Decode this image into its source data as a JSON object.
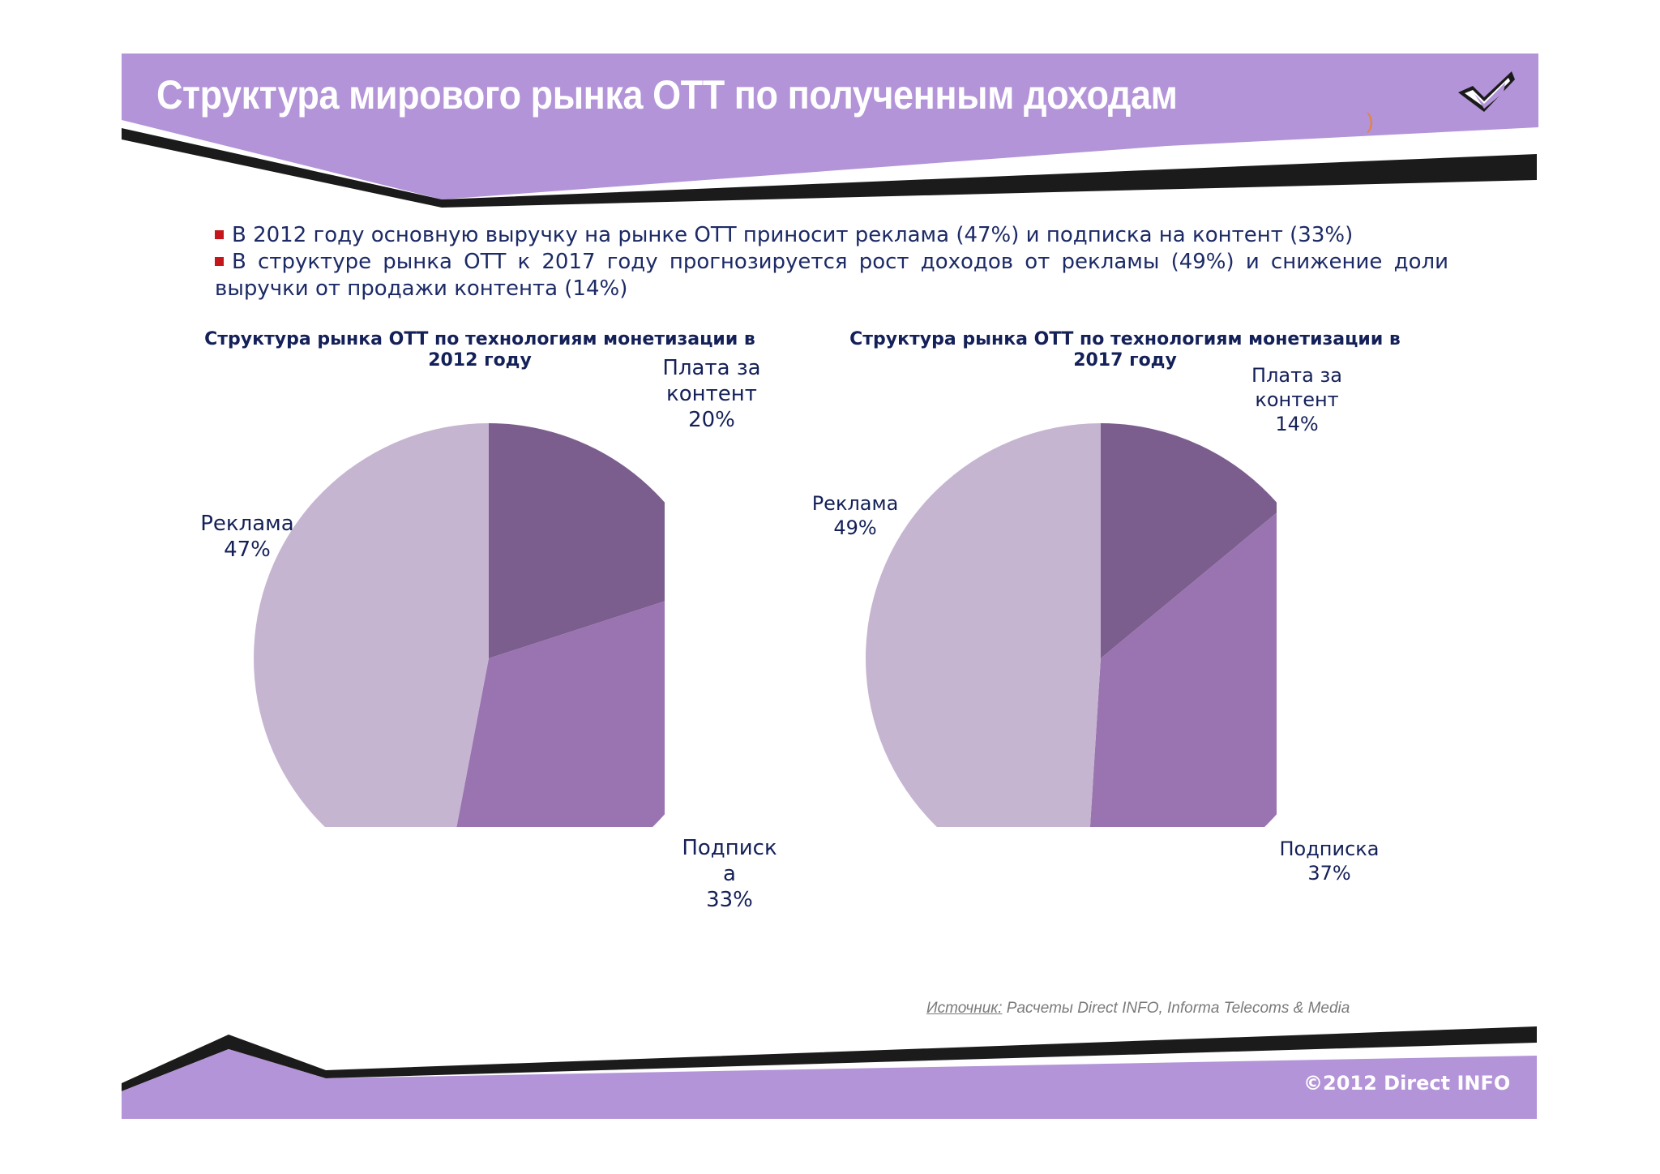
{
  "header": {
    "title": "Структура мирового рынка ОТТ по полученным доходам",
    "paren_mark": ")",
    "logo_icon": "checkmark-logo-icon"
  },
  "bullets": {
    "line1": "В 2012 году основную выручку на рынке ОТТ  приносит реклама (47%) и подписка на контент (33%)",
    "line2": "В структуре рынка  ОТТ к 2017 году прогнозируется рост доходов от рекламы (49%) и снижение доли",
    "line3": "выручки от продажи контента  (14%)"
  },
  "colors": {
    "accent_purple": "#b394d8",
    "slice_content": "#7b5e8e",
    "slice_subscription": "#9a74b0",
    "slice_ads": "#c5b5d1",
    "text_navy": "#142058",
    "bullet_red": "#c4161c"
  },
  "chart_data": [
    {
      "type": "pie",
      "title_line1": "Структура рынка ОТТ по технологиям монетизации в",
      "title_line2": "2012 году",
      "slices": [
        {
          "key": "content",
          "label": "Плата за контент",
          "display_label": "Плата за\nконтент\n20%",
          "value": 20,
          "color": "#7b5e8e"
        },
        {
          "key": "subscription",
          "label": "Подписка",
          "display_label": "Подписк\nа\n33%",
          "value": 33,
          "color": "#9a74b0"
        },
        {
          "key": "ads",
          "label": "Реклама",
          "display_label": "Реклама\n47%",
          "value": 47,
          "color": "#c5b5d1"
        }
      ]
    },
    {
      "type": "pie",
      "title_line1": "Структура рынка ОТТ по технологиям монетизации в",
      "title_line2": "2017 году",
      "slices": [
        {
          "key": "content",
          "label": "Плата за контент",
          "display_label": "Плата за\nконтент\n14%",
          "value": 14,
          "color": "#7b5e8e"
        },
        {
          "key": "subscription",
          "label": "Подписка",
          "display_label": "Подписка\n37%",
          "value": 37,
          "color": "#9a74b0"
        },
        {
          "key": "ads",
          "label": "Реклама",
          "display_label": "Реклама\n49%",
          "value": 49,
          "color": "#c5b5d1"
        }
      ]
    }
  ],
  "footer": {
    "source_label": "Источник:",
    "source_text": " Расчеты Direct INFO, Informa Telecoms & Media",
    "copyright": "©2012 Direct INFO"
  }
}
